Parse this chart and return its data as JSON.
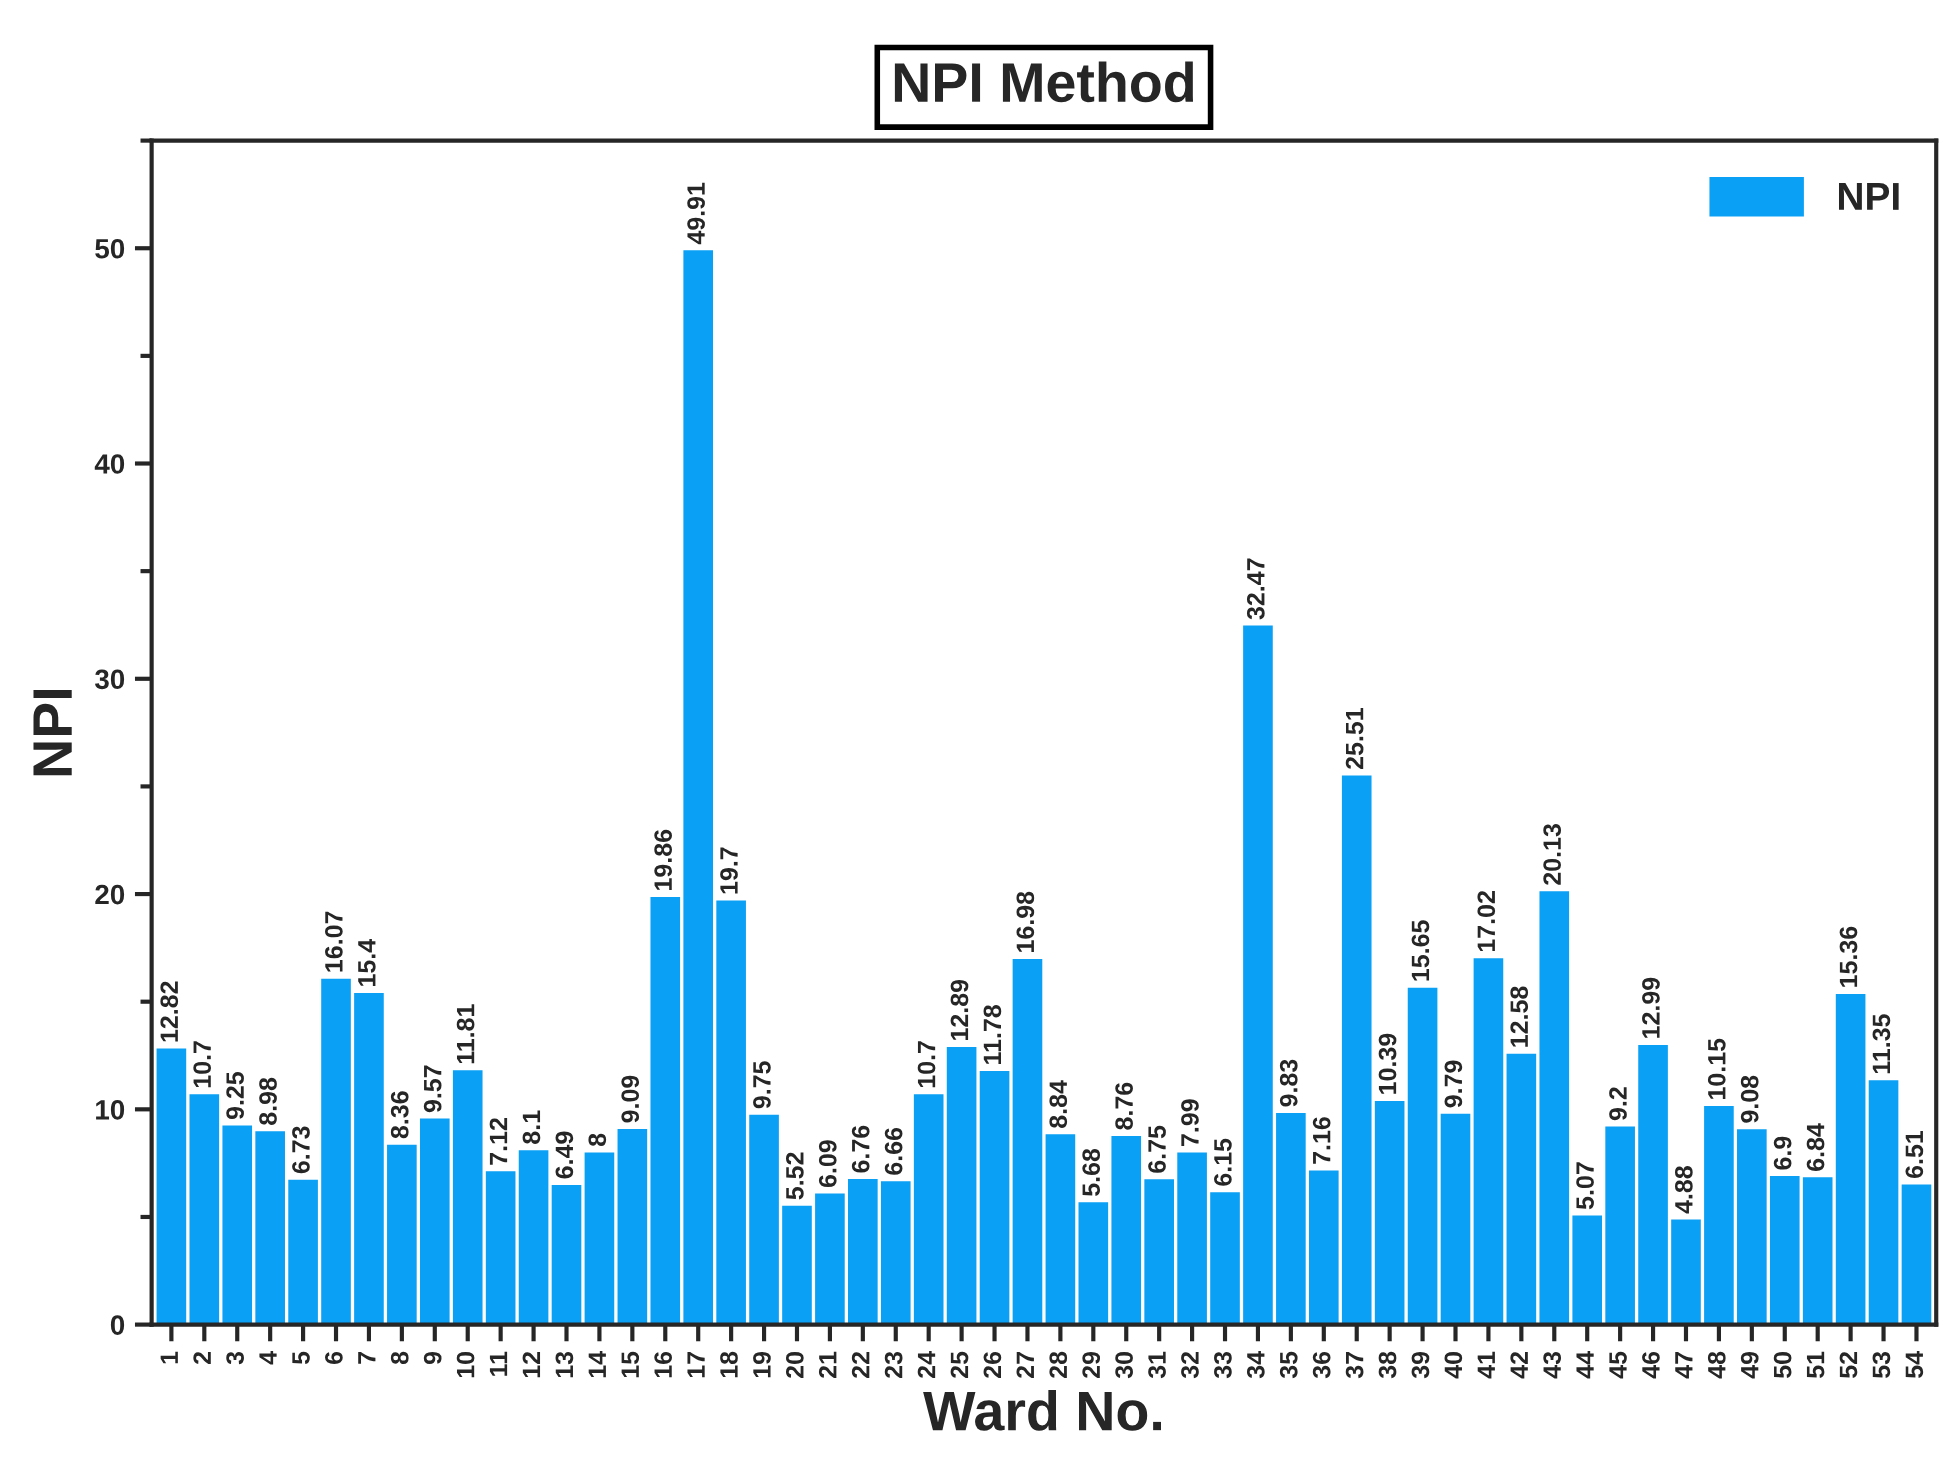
{
  "chart_data": {
    "type": "bar",
    "title": "NPI Method",
    "xlabel": "Ward No.",
    "ylabel": "NPI",
    "categories": [
      "1",
      "2",
      "3",
      "4",
      "5",
      "6",
      "7",
      "8",
      "9",
      "10",
      "11",
      "12",
      "13",
      "14",
      "15",
      "16",
      "17",
      "18",
      "19",
      "20",
      "21",
      "22",
      "23",
      "24",
      "25",
      "26",
      "27",
      "28",
      "29",
      "30",
      "31",
      "32",
      "33",
      "34",
      "35",
      "36",
      "37",
      "38",
      "39",
      "40",
      "41",
      "42",
      "43",
      "44",
      "45",
      "46",
      "47",
      "48",
      "49",
      "50",
      "51",
      "52",
      "53",
      "54"
    ],
    "series": [
      {
        "name": "NPI",
        "color": "#0aa0f5",
        "values": [
          12.82,
          10.7,
          9.25,
          8.98,
          6.73,
          16.07,
          15.4,
          8.36,
          9.57,
          11.81,
          7.12,
          8.1,
          6.49,
          8,
          9.09,
          19.86,
          49.91,
          19.7,
          9.75,
          5.52,
          6.09,
          6.76,
          6.66,
          10.7,
          12.89,
          11.78,
          16.98,
          8.84,
          5.68,
          8.76,
          6.75,
          7.99,
          6.15,
          32.47,
          9.83,
          7.16,
          25.51,
          10.39,
          15.65,
          9.79,
          17.02,
          12.58,
          20.13,
          5.07,
          9.2,
          12.99,
          4.88,
          10.15,
          9.08,
          6.9,
          6.84,
          15.36,
          11.35,
          6.51
        ]
      }
    ],
    "ylim": [
      0,
      55
    ],
    "yticks": [
      0,
      10,
      20,
      30,
      40,
      50
    ],
    "data_labels": true,
    "legend": "top right",
    "grid": false
  }
}
